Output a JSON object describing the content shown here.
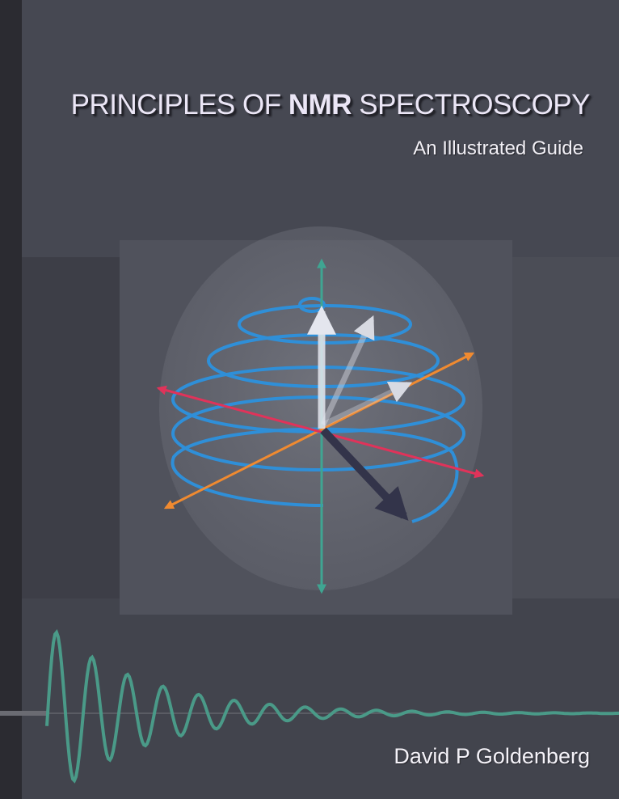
{
  "cover": {
    "title_part1": "PRINCIPLES OF ",
    "title_bold": "NMR",
    "title_part2": " SPECTROSCOPY",
    "subtitle": "An Illustrated Guide",
    "author": "David P Goldenberg"
  },
  "colors": {
    "background": "#464852",
    "spiral": "#2f8fd8",
    "z_axis": "#3fa592",
    "x_axis": "#e0335a",
    "y_axis": "#f08a30",
    "fid_curve": "#4a9a88"
  }
}
